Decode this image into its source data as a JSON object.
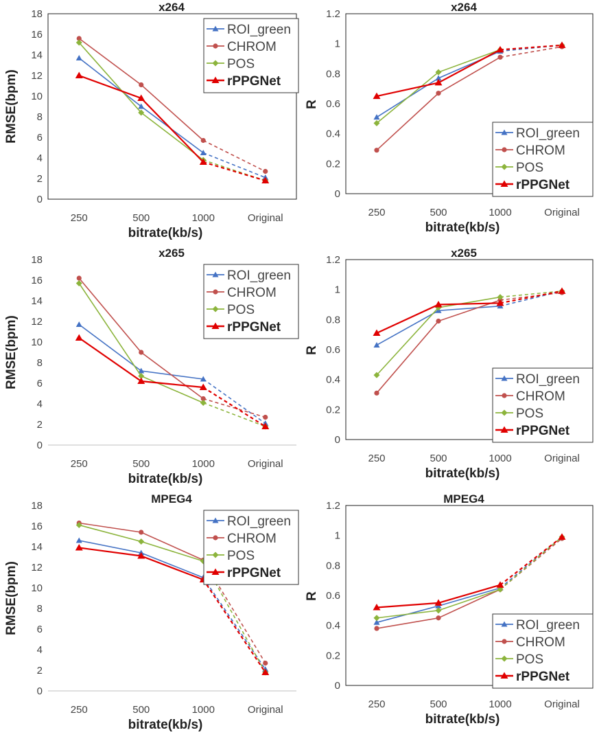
{
  "colors": {
    "ROI_green": "#4472c4",
    "CHROM": "#c0504d",
    "POS": "#8cb43c",
    "rPPGNet": "#e00000"
  },
  "chart_data": [
    {
      "type": "line",
      "title": "x264",
      "xlabel": "bitrate(kb/s)",
      "ylabel": "RMSE(bpm)",
      "categories": [
        "250",
        "500",
        "1000",
        "Original"
      ],
      "ylim": [
        0,
        18
      ],
      "yticks": [
        "0",
        "2",
        "4",
        "6",
        "8",
        "10",
        "12",
        "14",
        "16",
        "18"
      ],
      "legend_position": "top-right",
      "last_segment_style": "dashed",
      "series": [
        {
          "name": "ROI_green",
          "values": [
            13.7,
            9.0,
            4.5,
            2.1
          ]
        },
        {
          "name": "CHROM",
          "values": [
            15.6,
            11.1,
            5.7,
            2.7
          ]
        },
        {
          "name": "POS",
          "values": [
            15.2,
            8.4,
            3.8,
            1.8
          ]
        },
        {
          "name": "rPPGNet",
          "values": [
            12.0,
            9.8,
            3.6,
            1.8
          ]
        }
      ]
    },
    {
      "type": "line",
      "title": "x264",
      "xlabel": "bitrate(kb/s)",
      "ylabel": "R",
      "categories": [
        "250",
        "500",
        "1000",
        "Original"
      ],
      "ylim": [
        0,
        1.2
      ],
      "yticks": [
        "0",
        "0.2",
        "0.4",
        "0.6",
        "0.8",
        "1",
        "1.2"
      ],
      "legend_position": "bottom-right",
      "last_segment_style": "dashed",
      "series": [
        {
          "name": "ROI_green",
          "values": [
            0.51,
            0.77,
            0.95,
            0.99
          ]
        },
        {
          "name": "CHROM",
          "values": [
            0.29,
            0.67,
            0.91,
            0.98
          ]
        },
        {
          "name": "POS",
          "values": [
            0.47,
            0.81,
            0.96,
            0.99
          ]
        },
        {
          "name": "rPPGNet",
          "values": [
            0.65,
            0.74,
            0.96,
            0.99
          ]
        }
      ]
    },
    {
      "type": "line",
      "title": "x265",
      "xlabel": "bitrate(kb/s)",
      "ylabel": "RMSE(bpm)",
      "categories": [
        "250",
        "500",
        "1000",
        "Original"
      ],
      "ylim": [
        0,
        18
      ],
      "yticks": [
        "0",
        "2",
        "4",
        "6",
        "8",
        "10",
        "12",
        "14",
        "16",
        "18"
      ],
      "legend_position": "top-right",
      "last_segment_style": "dashed",
      "series": [
        {
          "name": "ROI_green",
          "values": [
            11.7,
            7.2,
            6.4,
            2.1
          ]
        },
        {
          "name": "CHROM",
          "values": [
            16.2,
            9.0,
            4.5,
            2.7
          ]
        },
        {
          "name": "POS",
          "values": [
            15.7,
            6.7,
            4.1,
            1.8
          ]
        },
        {
          "name": "rPPGNet",
          "values": [
            10.4,
            6.2,
            5.6,
            1.8
          ]
        }
      ]
    },
    {
      "type": "line",
      "title": "x265",
      "xlabel": "bitrate(kb/s)",
      "ylabel": "R",
      "categories": [
        "250",
        "500",
        "1000",
        "Original"
      ],
      "ylim": [
        0,
        1.2
      ],
      "yticks": [
        "0",
        "0.2",
        "0.4",
        "0.6",
        "0.8",
        "1",
        "1.2"
      ],
      "legend_position": "bottom-right",
      "last_segment_style": "dashed",
      "series": [
        {
          "name": "ROI_green",
          "values": [
            0.63,
            0.86,
            0.89,
            0.99
          ]
        },
        {
          "name": "CHROM",
          "values": [
            0.31,
            0.79,
            0.93,
            0.98
          ]
        },
        {
          "name": "POS",
          "values": [
            0.43,
            0.88,
            0.95,
            0.99
          ]
        },
        {
          "name": "rPPGNet",
          "values": [
            0.71,
            0.9,
            0.91,
            0.99
          ]
        }
      ]
    },
    {
      "type": "line",
      "title": "MPEG4",
      "xlabel": "bitrate(kb/s)",
      "ylabel": "RMSE(bpm)",
      "categories": [
        "250",
        "500",
        "1000",
        "Original"
      ],
      "ylim": [
        0,
        18
      ],
      "yticks": [
        "0",
        "2",
        "4",
        "6",
        "8",
        "10",
        "12",
        "14",
        "16",
        "18"
      ],
      "legend_position": "top-right",
      "last_segment_style": "dashed",
      "series": [
        {
          "name": "ROI_green",
          "values": [
            14.6,
            13.4,
            11.0,
            2.1
          ]
        },
        {
          "name": "CHROM",
          "values": [
            16.3,
            15.4,
            12.7,
            2.7
          ]
        },
        {
          "name": "POS",
          "values": [
            16.1,
            14.5,
            12.6,
            1.8
          ]
        },
        {
          "name": "rPPGNet",
          "values": [
            13.9,
            13.1,
            10.8,
            1.8
          ]
        }
      ]
    },
    {
      "type": "line",
      "title": "MPEG4",
      "xlabel": "bitrate(kb/s)",
      "ylabel": "R",
      "categories": [
        "250",
        "500",
        "1000",
        "Original"
      ],
      "ylim": [
        0,
        1.2
      ],
      "yticks": [
        "0",
        "0.2",
        "0.4",
        "0.6",
        "0.8",
        "1",
        "1.2"
      ],
      "legend_position": "bottom-right",
      "last_segment_style": "dashed",
      "series": [
        {
          "name": "ROI_green",
          "values": [
            0.42,
            0.53,
            0.65,
            0.99
          ]
        },
        {
          "name": "CHROM",
          "values": [
            0.38,
            0.45,
            0.64,
            0.98
          ]
        },
        {
          "name": "POS",
          "values": [
            0.45,
            0.5,
            0.64,
            0.99
          ]
        },
        {
          "name": "rPPGNet",
          "values": [
            0.52,
            0.55,
            0.67,
            0.99
          ]
        }
      ]
    }
  ]
}
